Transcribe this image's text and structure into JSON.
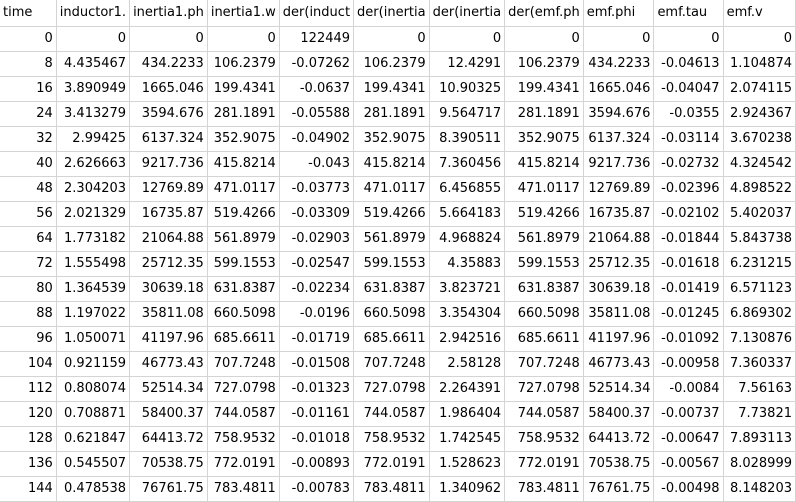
{
  "headers": [
    "time",
    "inductor1.",
    "inertia1.ph",
    "inertia1.w",
    "der(induct",
    "der(inertia",
    "der(inertia",
    "der(emf.ph",
    "emf.phi",
    "emf.tau",
    "emf.v"
  ],
  "rows": [
    [
      "0",
      "0",
      "0",
      "0",
      "122449",
      "0",
      "0",
      "0",
      "0",
      "0",
      "0"
    ],
    [
      "8",
      "4.435467",
      "434.2233",
      "106.2379",
      "-0.07262",
      "106.2379",
      "12.4291",
      "106.2379",
      "434.2233",
      "-0.04613",
      "1.104874"
    ],
    [
      "16",
      "3.890949",
      "1665.046",
      "199.4341",
      "-0.0637",
      "199.4341",
      "10.90325",
      "199.4341",
      "1665.046",
      "-0.04047",
      "2.074115"
    ],
    [
      "24",
      "3.413279",
      "3594.676",
      "281.1891",
      "-0.05588",
      "281.1891",
      "9.564717",
      "281.1891",
      "3594.676",
      "-0.0355",
      "2.924367"
    ],
    [
      "32",
      "2.99425",
      "6137.324",
      "352.9075",
      "-0.04902",
      "352.9075",
      "8.390511",
      "352.9075",
      "6137.324",
      "-0.03114",
      "3.670238"
    ],
    [
      "40",
      "2.626663",
      "9217.736",
      "415.8214",
      "-0.043",
      "415.8214",
      "7.360456",
      "415.8214",
      "9217.736",
      "-0.02732",
      "4.324542"
    ],
    [
      "48",
      "2.304203",
      "12769.89",
      "471.0117",
      "-0.03773",
      "471.0117",
      "6.456855",
      "471.0117",
      "12769.89",
      "-0.02396",
      "4.898522"
    ],
    [
      "56",
      "2.021329",
      "16735.87",
      "519.4266",
      "-0.03309",
      "519.4266",
      "5.664183",
      "519.4266",
      "16735.87",
      "-0.02102",
      "5.402037"
    ],
    [
      "64",
      "1.773182",
      "21064.88",
      "561.8979",
      "-0.02903",
      "561.8979",
      "4.968824",
      "561.8979",
      "21064.88",
      "-0.01844",
      "5.843738"
    ],
    [
      "72",
      "1.555498",
      "25712.35",
      "599.1553",
      "-0.02547",
      "599.1553",
      "4.35883",
      "599.1553",
      "25712.35",
      "-0.01618",
      "6.231215"
    ],
    [
      "80",
      "1.364539",
      "30639.18",
      "631.8387",
      "-0.02234",
      "631.8387",
      "3.823721",
      "631.8387",
      "30639.18",
      "-0.01419",
      "6.571123"
    ],
    [
      "88",
      "1.197022",
      "35811.08",
      "660.5098",
      "-0.0196",
      "660.5098",
      "3.354304",
      "660.5098",
      "35811.08",
      "-0.01245",
      "6.869302"
    ],
    [
      "96",
      "1.050071",
      "41197.96",
      "685.6611",
      "-0.01719",
      "685.6611",
      "2.942516",
      "685.6611",
      "41197.96",
      "-0.01092",
      "7.130876"
    ],
    [
      "104",
      "0.921159",
      "46773.43",
      "707.7248",
      "-0.01508",
      "707.7248",
      "2.58128",
      "707.7248",
      "46773.43",
      "-0.00958",
      "7.360337"
    ],
    [
      "112",
      "0.808074",
      "52514.34",
      "727.0798",
      "-0.01323",
      "727.0798",
      "2.264391",
      "727.0798",
      "52514.34",
      "-0.0084",
      "7.56163"
    ],
    [
      "120",
      "0.708871",
      "58400.37",
      "744.0587",
      "-0.01161",
      "744.0587",
      "1.986404",
      "744.0587",
      "58400.37",
      "-0.00737",
      "7.73821"
    ],
    [
      "128",
      "0.621847",
      "64413.72",
      "758.9532",
      "-0.01018",
      "758.9532",
      "1.742545",
      "758.9532",
      "64413.72",
      "-0.00647",
      "7.893113"
    ],
    [
      "136",
      "0.545507",
      "70538.75",
      "772.0191",
      "-0.00893",
      "772.0191",
      "1.528623",
      "772.0191",
      "70538.75",
      "-0.00567",
      "8.028999"
    ],
    [
      "144",
      "0.478538",
      "76761.75",
      "783.4811",
      "-0.00783",
      "783.4811",
      "1.340962",
      "783.4811",
      "76761.75",
      "-0.00498",
      "8.148203"
    ]
  ]
}
